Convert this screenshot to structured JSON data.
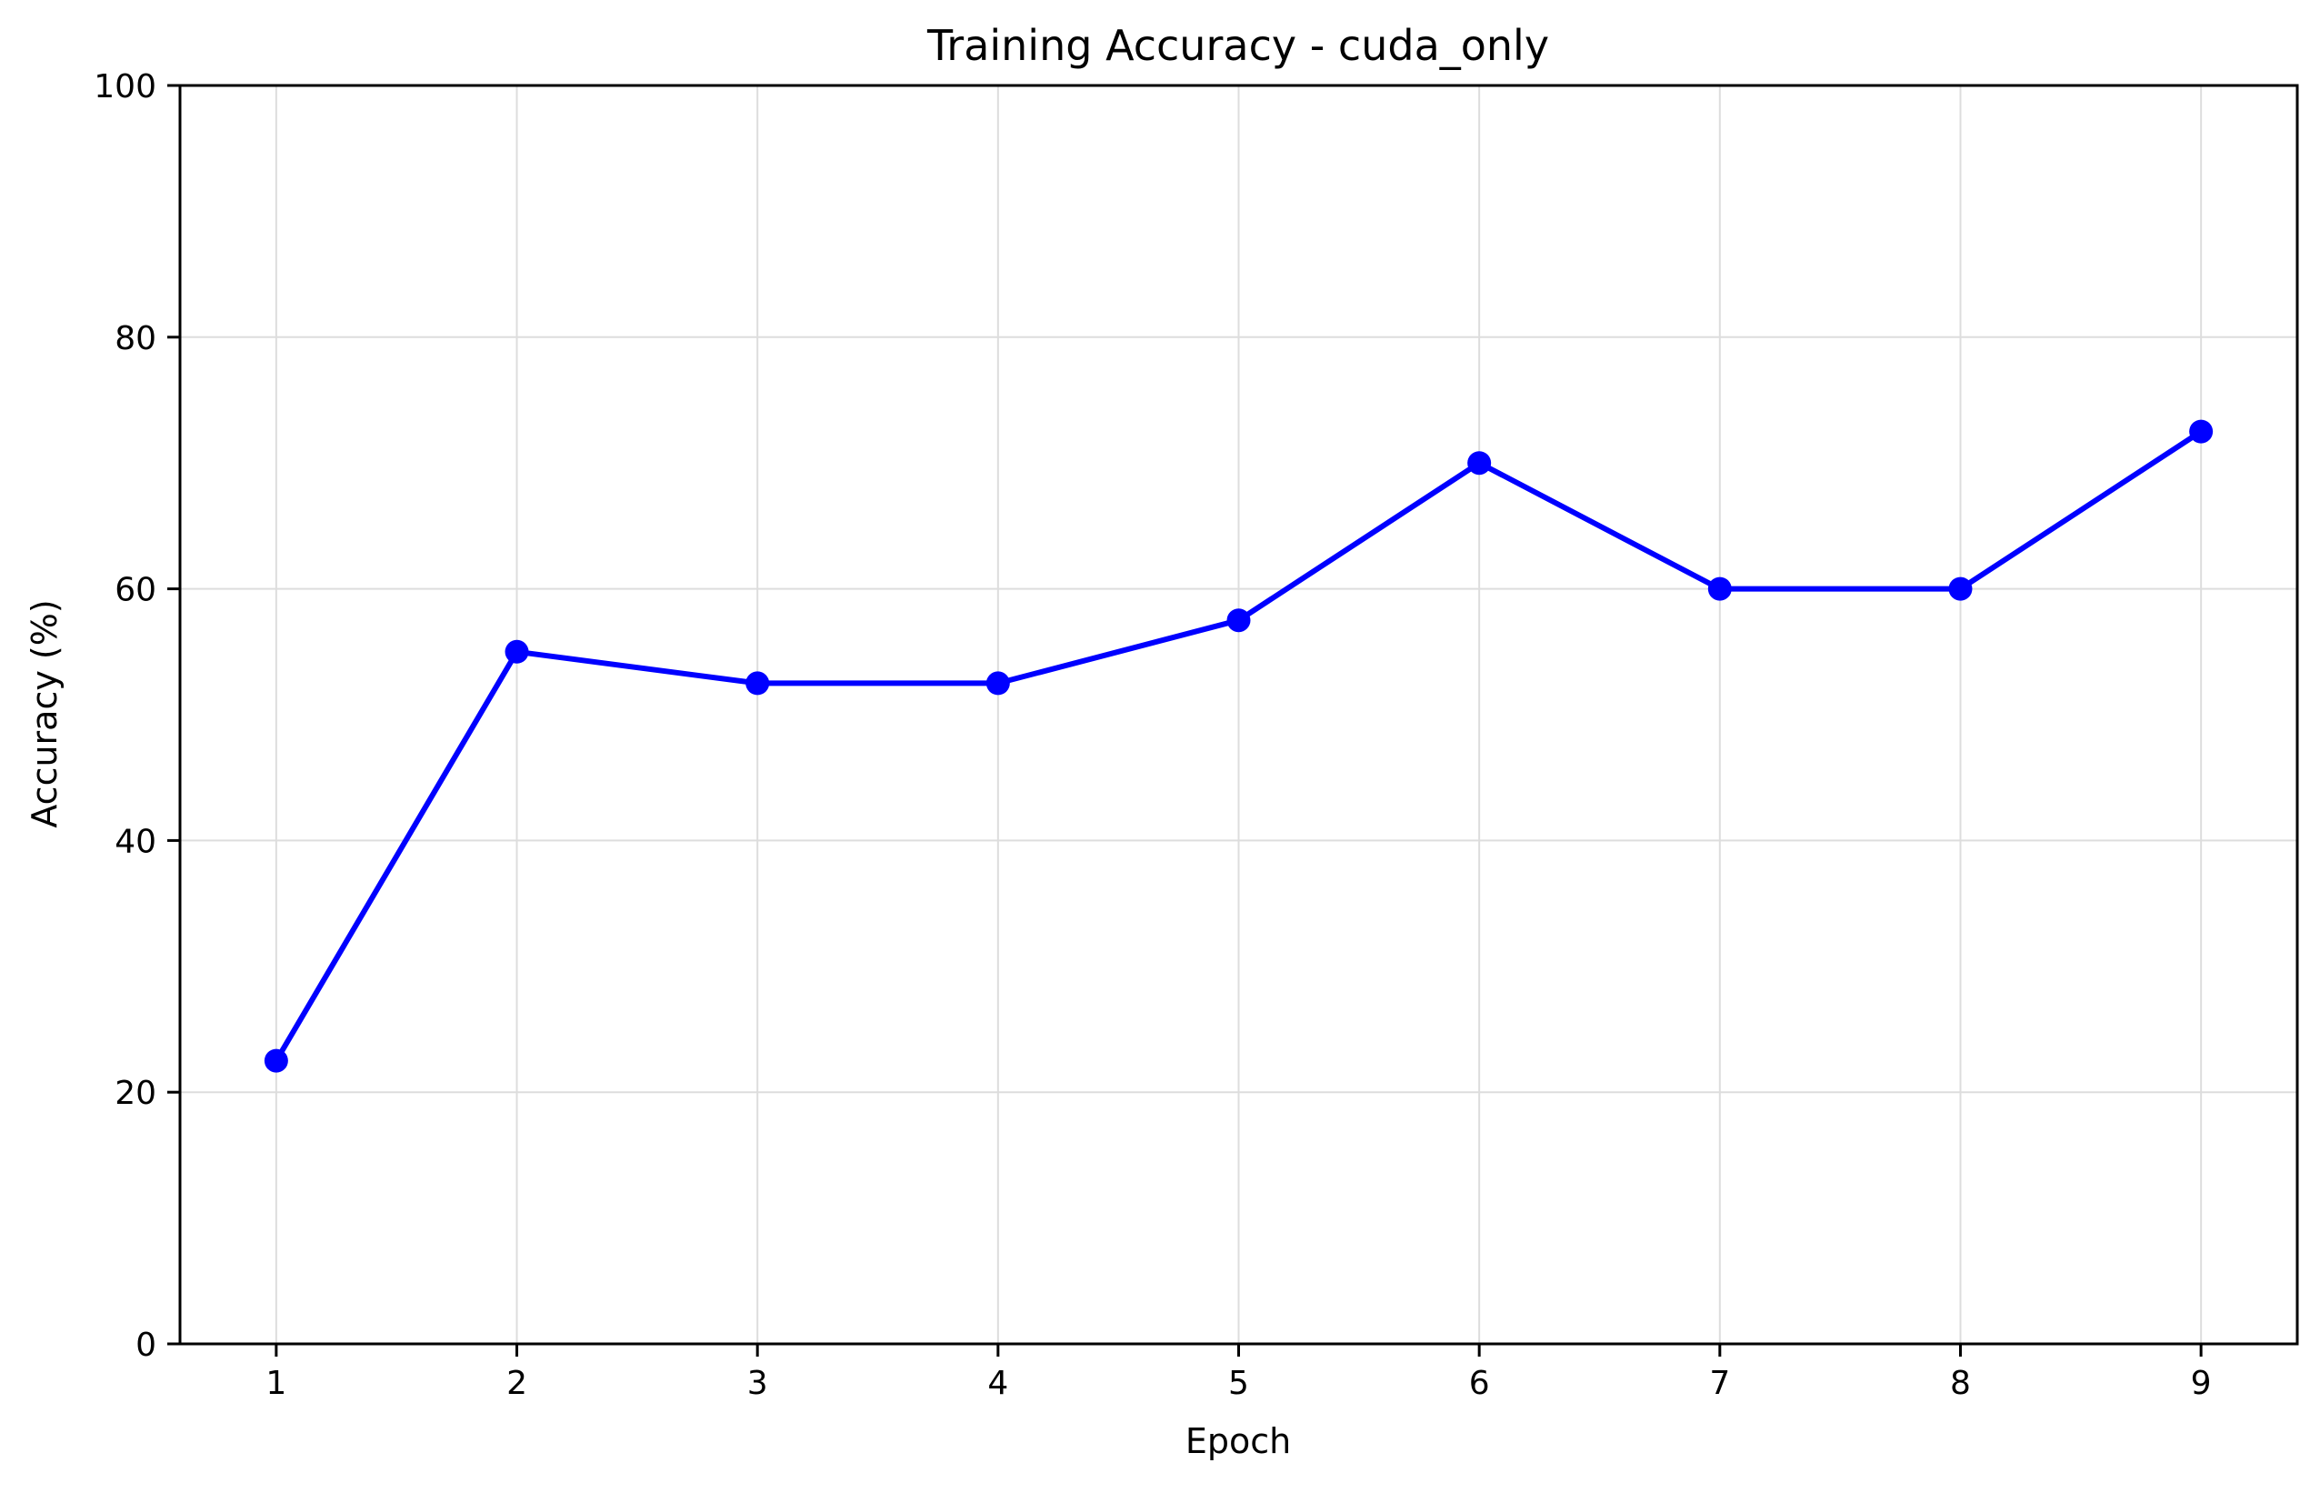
{
  "chart_data": {
    "type": "line",
    "title": "Training Accuracy - cuda_only",
    "xlabel": "Epoch",
    "ylabel": "Accuracy (%)",
    "x": [
      1,
      2,
      3,
      4,
      5,
      6,
      7,
      8,
      9
    ],
    "series": [
      {
        "values": [
          22.5,
          55.0,
          52.5,
          52.5,
          57.5,
          70.0,
          60.0,
          60.0,
          72.5
        ],
        "color": "#0000ff",
        "marker": "circle"
      }
    ],
    "xlim": [
      0.6,
      9.4
    ],
    "ylim": [
      0,
      100
    ],
    "xticks": [
      1,
      2,
      3,
      4,
      5,
      6,
      7,
      8,
      9
    ],
    "yticks": [
      0,
      20,
      40,
      60,
      80,
      100
    ],
    "grid": true,
    "colors": {
      "grid": "#dddddd",
      "axes": "#000000"
    }
  }
}
